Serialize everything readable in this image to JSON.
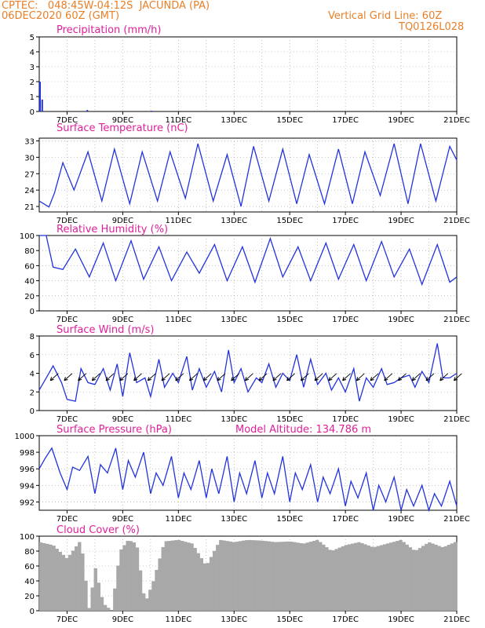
{
  "header": {
    "line1_left": "CPTEC:   048:45W-04:12S  JACUNDA (PA)",
    "line2_left": "06DEC2020 60Z (GMT)",
    "line1_right": "Vertical Grid Line: 60Z",
    "line2_right": "TQ0126L028"
  },
  "colors": {
    "header": "#e8802a",
    "title": "#e0209a",
    "series": "#2233dd",
    "cloud": "#a8a8a8",
    "wind_arrow": "#000000",
    "grid": "#9a9a9a"
  },
  "x_tick_labels": [
    "7DEC",
    "9DEC",
    "11DEC",
    "13DEC",
    "15DEC",
    "17DEC",
    "19DEC",
    "21DEC"
  ],
  "chart_data": [
    {
      "type": "bar",
      "title": "Precipitation (mm/h)",
      "ylim": [
        0,
        5
      ],
      "yticks": [
        "0",
        "1",
        "2",
        "3",
        "4",
        "5"
      ],
      "x_days": [
        0.0,
        0.08,
        1.7,
        4.0
      ],
      "values": [
        2.0,
        0.8,
        0.1,
        0.05
      ]
    },
    {
      "type": "line",
      "title": "Surface Temperature (nC)",
      "ylim": [
        20,
        33.5
      ],
      "yticks": [
        "21",
        "24",
        "27",
        "30",
        "33"
      ],
      "x_days": [
        0.0,
        0.35,
        0.55,
        0.85,
        1.25,
        1.75,
        2.25,
        2.7,
        3.25,
        3.7,
        4.25,
        4.7,
        5.25,
        5.7,
        6.25,
        6.75,
        7.25,
        7.7,
        8.25,
        8.75,
        9.25,
        9.7,
        10.25,
        10.75,
        11.25,
        11.7,
        12.25,
        12.75,
        13.25,
        13.7,
        14.25,
        14.75,
        15.0
      ],
      "values": [
        22,
        20.9,
        23.5,
        29,
        24,
        31,
        22,
        31.5,
        21.5,
        31,
        22,
        31,
        22.5,
        32.5,
        22,
        30.5,
        21,
        32,
        22,
        31.5,
        21.5,
        30.5,
        21.5,
        31.5,
        21.5,
        31,
        23,
        32.5,
        21.5,
        32.5,
        22,
        32,
        29.5
      ]
    },
    {
      "type": "line",
      "title": "Relative Humidity (%)",
      "ylim": [
        0,
        100
      ],
      "yticks": [
        "0",
        "20",
        "40",
        "60",
        "80",
        "100"
      ],
      "x_days": [
        0.0,
        0.25,
        0.5,
        0.85,
        1.3,
        1.8,
        2.3,
        2.75,
        3.3,
        3.75,
        4.3,
        4.75,
        5.3,
        5.75,
        6.3,
        6.75,
        7.3,
        7.75,
        8.3,
        8.75,
        9.3,
        9.75,
        10.3,
        10.75,
        11.3,
        11.75,
        12.3,
        12.75,
        13.3,
        13.75,
        14.3,
        14.75,
        15.0
      ],
      "values": [
        100,
        100,
        58,
        55,
        82,
        45,
        90,
        40,
        93,
        42,
        85,
        40,
        78,
        50,
        88,
        40,
        85,
        38,
        96,
        45,
        85,
        40,
        90,
        42,
        88,
        40,
        92,
        45,
        82,
        35,
        88,
        38,
        45
      ]
    },
    {
      "type": "line",
      "title": "Surface Wind (m/s)",
      "ylim": [
        0,
        8
      ],
      "yticks": [
        "0",
        "2",
        "4",
        "6",
        "8"
      ],
      "x_days": [
        0.0,
        0.25,
        0.5,
        0.8,
        1.0,
        1.3,
        1.5,
        1.75,
        2.0,
        2.3,
        2.55,
        2.8,
        3.0,
        3.25,
        3.5,
        3.8,
        4.0,
        4.3,
        4.5,
        4.8,
        5.0,
        5.3,
        5.5,
        5.75,
        6.0,
        6.3,
        6.55,
        6.8,
        7.0,
        7.25,
        7.5,
        7.8,
        8.0,
        8.25,
        8.5,
        8.75,
        9.0,
        9.25,
        9.5,
        9.75,
        10.0,
        10.3,
        10.5,
        10.75,
        11.0,
        11.3,
        11.5,
        11.75,
        12.0,
        12.3,
        12.5,
        12.75,
        13.0,
        13.3,
        13.5,
        13.75,
        14.0,
        14.3,
        14.5,
        14.75,
        15.0
      ],
      "values": [
        2.2,
        3.5,
        4.8,
        3.0,
        1.2,
        1.0,
        4.5,
        3.0,
        2.8,
        4.5,
        2.2,
        5.0,
        1.5,
        6.2,
        3.0,
        3.5,
        1.5,
        5.5,
        2.5,
        4.0,
        3.0,
        5.8,
        2.2,
        4.5,
        2.5,
        4.2,
        2.0,
        6.5,
        3.0,
        4.5,
        2.0,
        3.5,
        3.0,
        5.0,
        2.5,
        4.0,
        3.2,
        6.0,
        2.5,
        5.5,
        2.8,
        4.0,
        2.2,
        3.5,
        2.0,
        4.5,
        1.0,
        3.5,
        2.5,
        4.5,
        2.8,
        3.0,
        3.5,
        3.8,
        2.5,
        4.2,
        3.0,
        7.2,
        3.5,
        3.5,
        4.0
      ]
    },
    {
      "type": "line",
      "title": "Surface Pressure (hPa)",
      "annotation": "Model Altitude: 134.786 m",
      "ylim": [
        991,
        1000
      ],
      "yticks": [
        "992",
        "994",
        "996",
        "998",
        "1000"
      ],
      "x_days": [
        0.0,
        0.2,
        0.45,
        0.75,
        1.0,
        1.2,
        1.45,
        1.75,
        2.0,
        2.2,
        2.45,
        2.75,
        3.0,
        3.2,
        3.45,
        3.75,
        4.0,
        4.2,
        4.45,
        4.75,
        5.0,
        5.2,
        5.45,
        5.75,
        6.0,
        6.2,
        6.45,
        6.75,
        7.0,
        7.2,
        7.45,
        7.75,
        8.0,
        8.2,
        8.45,
        8.75,
        9.0,
        9.2,
        9.45,
        9.75,
        10.0,
        10.2,
        10.45,
        10.75,
        11.0,
        11.2,
        11.45,
        11.75,
        12.0,
        12.2,
        12.45,
        12.75,
        13.0,
        13.2,
        13.45,
        13.75,
        14.0,
        14.2,
        14.45,
        14.75,
        15.0
      ],
      "values": [
        996.0,
        997.2,
        998.5,
        995.5,
        993.5,
        996.2,
        995.8,
        997.5,
        993.0,
        996.5,
        995.5,
        998.5,
        993.5,
        997.0,
        995.0,
        998.0,
        993.0,
        995.5,
        994.0,
        997.5,
        992.5,
        995.5,
        993.5,
        997.0,
        992.5,
        996.0,
        993.0,
        997.5,
        992.0,
        995.5,
        993.0,
        997.0,
        992.5,
        995.5,
        993.0,
        997.5,
        992.0,
        995.5,
        993.5,
        996.5,
        992.0,
        995.0,
        993.0,
        996.0,
        991.5,
        994.5,
        992.5,
        995.5,
        991.0,
        994.0,
        992.0,
        995.0,
        990.5,
        993.5,
        991.5,
        994.0,
        990.0,
        993.0,
        991.5,
        994.5,
        991.5
      ]
    },
    {
      "type": "bar",
      "title": "Cloud Cover (%)",
      "ylim": [
        0,
        100
      ],
      "yticks": [
        "0",
        "20",
        "40",
        "60",
        "80",
        "100"
      ],
      "x_days": [
        0.0,
        0.5,
        1.0,
        1.5,
        1.8,
        2.0,
        2.3,
        2.6,
        2.9,
        3.2,
        3.5,
        3.8,
        4.1,
        4.5,
        5.0,
        5.5,
        6.0,
        6.5,
        7.0,
        7.5,
        8.0,
        8.5,
        9.0,
        9.5,
        10.0,
        10.5,
        11.0,
        11.5,
        12.0,
        12.5,
        13.0,
        13.5,
        14.0,
        14.5,
        15.0
      ],
      "values": [
        92,
        88,
        70,
        95,
        0,
        60,
        10,
        0,
        80,
        95,
        90,
        10,
        40,
        93,
        95,
        90,
        60,
        95,
        92,
        95,
        94,
        92,
        93,
        90,
        95,
        80,
        88,
        92,
        85,
        90,
        95,
        80,
        92,
        85,
        93
      ]
    }
  ]
}
